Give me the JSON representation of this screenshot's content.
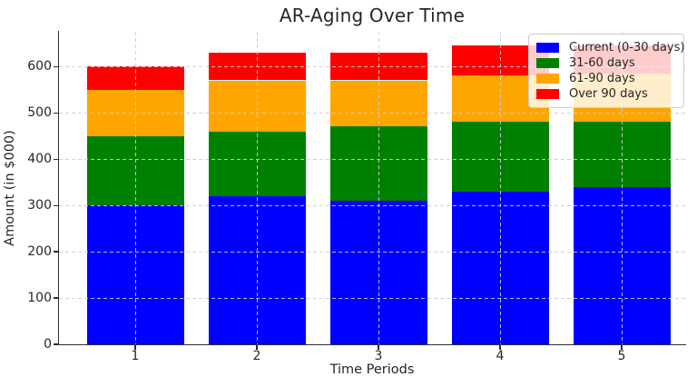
{
  "chart_data": {
    "type": "bar",
    "stacked": true,
    "title": "AR-Aging Over Time",
    "xlabel": "Time Periods",
    "ylabel": "Amount (in $000)",
    "categories": [
      "1",
      "2",
      "3",
      "4",
      "5"
    ],
    "series": [
      {
        "name": "Current (0-30 days)",
        "color": "#0000ff",
        "values": [
          300,
          320,
          310,
          330,
          340
        ]
      },
      {
        "name": "31-60 days",
        "color": "#008000",
        "values": [
          150,
          140,
          160,
          150,
          140
        ]
      },
      {
        "name": "61-90 days",
        "color": "#ffa500",
        "values": [
          100,
          110,
          100,
          100,
          105
        ]
      },
      {
        "name": "Over 90 days",
        "color": "#ff0000",
        "values": [
          50,
          60,
          60,
          65,
          60
        ]
      }
    ],
    "totals": [
      600,
      630,
      630,
      645,
      645
    ],
    "ylim": [
      0,
      675
    ],
    "yticks": [
      0,
      100,
      200,
      300,
      400,
      500,
      600
    ],
    "grid": "dashed, drawn above bars",
    "legend_position": "upper right",
    "grid_color": "#cccccc",
    "axis_color": "#2e2e2e"
  }
}
